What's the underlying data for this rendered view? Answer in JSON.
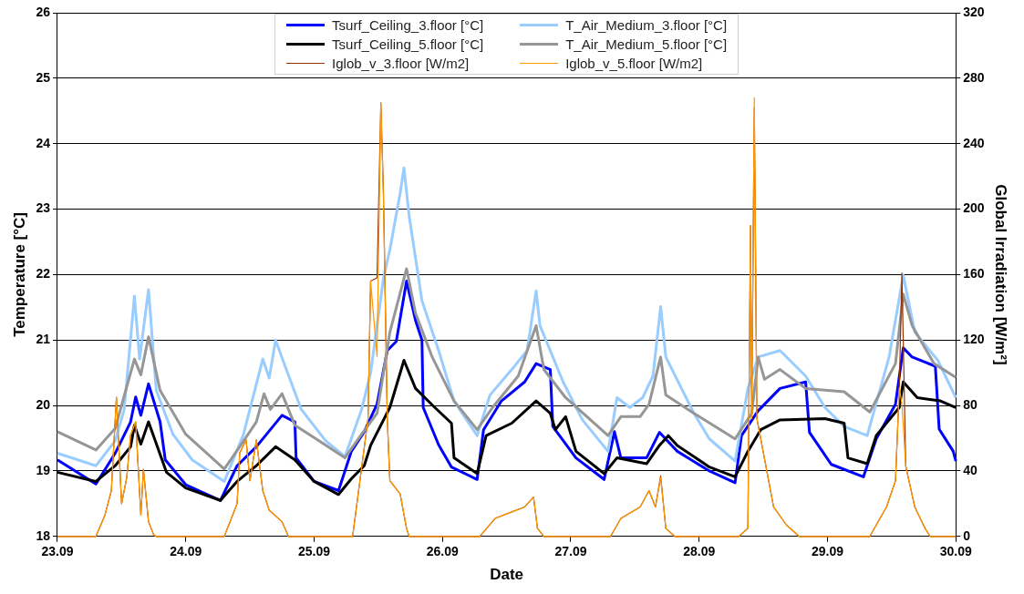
{
  "chart_data": {
    "type": "line",
    "xlabel": "Date",
    "ylabel": "Temperature [°C]",
    "y2label": "Global Irradiation [W/m²]",
    "xlim": [
      "--09-23",
      "--09-30"
    ],
    "xticks": [
      {
        "value": "--09-23",
        "label": "23.09"
      },
      {
        "value": "--09-24",
        "label": "24.09"
      },
      {
        "value": "--09-25",
        "label": "25.09"
      },
      {
        "value": "--09-26",
        "label": "26.09"
      },
      {
        "value": "--09-27",
        "label": "27.09"
      },
      {
        "value": "--09-28",
        "label": "28.09"
      },
      {
        "value": "--09-29",
        "label": "29.09"
      },
      {
        "value": "--09-30",
        "label": "30.09"
      }
    ],
    "ylim": [
      18,
      26
    ],
    "yticks": [
      18,
      19,
      20,
      21,
      22,
      23,
      24,
      25,
      26
    ],
    "y2lim": [
      0,
      320
    ],
    "y2ticks": [
      0,
      40,
      80,
      120,
      160,
      200,
      240,
      280,
      320
    ],
    "grid": "y",
    "legend": "top",
    "series": [
      {
        "name": "Tsurf_Ceiling_3.floor [°C]",
        "color": "#0000ff",
        "x": [
          "--09-23T00:00",
          "--09-23T07:12",
          "--09-23T10:48",
          "--09-23T13:41",
          "--09-23T14:38",
          "--09-23T15:36",
          "--09-23T17:02",
          "--09-23T19:12",
          "--09-23T20:10",
          "--09-24T00:00",
          "--09-24T06:29",
          "--09-24T09:36",
          "--09-24T13:12",
          "--09-24T18:00",
          "--09-24T20:24",
          "--09-24T20:38",
          "--09-25T00:00",
          "--09-25T04:34",
          "--09-25T06:58",
          "--09-25T09:22",
          "--09-25T11:46",
          "--09-25T13:41",
          "--09-25T15:22",
          "--09-25T17:17",
          "--09-25T18:58",
          "--09-25T20:10",
          "--09-25T20:24",
          "--09-25T23:17",
          "--09-26T01:41",
          "--09-26T06:29",
          "--09-26T07:41",
          "--09-26T11:02",
          "--09-26T15:22",
          "--09-26T17:31",
          "--09-26T20:10",
          "--09-26T20:38",
          "--09-27T00:58",
          "--09-27T06:14",
          "--09-27T08:10",
          "--09-27T09:22",
          "--09-27T14:10",
          "--09-27T16:34",
          "--09-27T19:55",
          "--09-28T01:55",
          "--09-28T06:43",
          "--09-28T07:55",
          "--09-28T11:02",
          "--09-28T15:07",
          "--09-28T19:55",
          "--09-28T20:38",
          "--09-29T00:43",
          "--09-29T06:43",
          "--09-29T09:07",
          "--09-29T12:43",
          "--09-29T14:10",
          "--09-29T15:50",
          "--09-29T20:10",
          "--09-29T20:53",
          "--09-29T23:31",
          "--09-30T00:00"
        ],
        "values": [
          19.17,
          18.8,
          19.27,
          19.75,
          20.13,
          19.85,
          20.33,
          19.75,
          19.17,
          18.79,
          18.55,
          19.08,
          19.37,
          19.85,
          19.75,
          19.2,
          18.84,
          18.7,
          19.3,
          19.6,
          20.02,
          20.84,
          20.98,
          21.9,
          21.3,
          21.0,
          19.97,
          19.4,
          19.06,
          18.87,
          19.63,
          20.07,
          20.36,
          20.64,
          20.55,
          19.68,
          19.2,
          18.87,
          19.6,
          19.2,
          19.2,
          19.59,
          19.3,
          19.0,
          18.82,
          19.54,
          19.92,
          20.26,
          20.36,
          19.59,
          19.1,
          18.91,
          19.49,
          20.02,
          20.88,
          20.74,
          20.6,
          19.64,
          19.3,
          19.15
        ]
      },
      {
        "name": "T_Air_Medium_3.floor [°C]",
        "color": "#99ccff",
        "x": [
          "--09-23T00:00",
          "--09-23T07:12",
          "--09-23T10:48",
          "--09-23T12:29",
          "--09-23T14:24",
          "--09-23T15:22",
          "--09-23T17:02",
          "--09-23T18:29",
          "--09-23T21:36",
          "--09-24T01:12",
          "--09-24T07:12",
          "--09-24T10:48",
          "--09-24T14:24",
          "--09-24T15:36",
          "--09-24T16:48",
          "--09-24T18:29",
          "--09-24T21:36",
          "--09-25T02:10",
          "--09-25T05:46",
          "--09-25T08:53",
          "--09-25T10:34",
          "--09-25T12:58",
          "--09-25T14:10",
          "--09-25T16:05",
          "--09-25T16:48",
          "--09-25T17:46",
          "--09-25T20:10",
          "--09-25T23:17",
          "--09-26T02:10",
          "--09-26T06:29",
          "--09-26T08:53",
          "--09-26T12:58",
          "--09-26T15:50",
          "--09-26T17:31",
          "--09-26T18:14",
          "--09-26T22:34",
          "--09-27T02:10",
          "--09-27T06:58",
          "--09-27T08:38",
          "--09-27T11:02",
          "--09-27T13:26",
          "--09-27T15:22",
          "--09-27T16:48",
          "--09-27T17:46",
          "--09-27T23:02",
          "--09-28T01:55",
          "--09-28T06:43",
          "--09-28T09:07",
          "--09-28T11:02",
          "--09-28T15:07",
          "--09-28T19:55",
          "--09-28T23:31",
          "--09-29T03:07",
          "--09-29T07:26",
          "--09-29T11:31",
          "--09-29T14:10",
          "--09-29T16:19",
          "--09-29T20:38",
          "--09-30T00:00"
        ],
        "values": [
          19.27,
          19.08,
          19.46,
          19.94,
          21.67,
          20.71,
          21.77,
          20.23,
          19.56,
          19.17,
          18.84,
          19.56,
          20.71,
          20.42,
          21.0,
          20.62,
          19.94,
          19.46,
          19.22,
          19.94,
          20.5,
          21.94,
          22.38,
          23.24,
          23.63,
          22.9,
          21.6,
          20.84,
          20.07,
          19.54,
          20.16,
          20.55,
          20.84,
          21.75,
          21.22,
          20.36,
          19.78,
          19.3,
          20.12,
          19.97,
          20.12,
          20.45,
          21.51,
          20.74,
          19.88,
          19.49,
          19.15,
          20.26,
          20.74,
          20.84,
          20.45,
          19.97,
          19.68,
          19.54,
          20.74,
          21.99,
          21.12,
          20.69,
          20.12
        ]
      },
      {
        "name": "Tsurf_Ceiling_5.floor [°C]",
        "color": "#000000",
        "x": [
          "--09-23T00:00",
          "--09-23T07:12",
          "--09-23T10:48",
          "--09-23T13:41",
          "--09-23T14:24",
          "--09-23T15:36",
          "--09-23T17:02",
          "--09-23T20:24",
          "--09-24T00:00",
          "--09-24T06:29",
          "--09-24T09:36",
          "--09-24T13:12",
          "--09-24T16:48",
          "--09-24T20:24",
          "--09-25T00:00",
          "--09-25T04:34",
          "--09-25T06:58",
          "--09-25T09:22",
          "--09-25T10:34",
          "--09-25T14:10",
          "--09-25T16:48",
          "--09-25T18:58",
          "--09-25T22:34",
          "--09-26T01:41",
          "--09-26T02:10",
          "--09-26T06:29",
          "--09-26T08:10",
          "--09-26T12:58",
          "--09-26T17:31",
          "--09-26T20:10",
          "--09-26T21:07",
          "--09-26T23:02",
          "--09-27T00:58",
          "--09-27T06:14",
          "--09-27T08:38",
          "--09-27T14:10",
          "--09-27T16:34",
          "--09-27T18:14",
          "--09-27T19:55",
          "--09-28T01:55",
          "--09-28T06:43",
          "--09-28T09:07",
          "--09-28T11:31",
          "--09-28T15:07",
          "--09-28T23:31",
          "--09-29T03:07",
          "--09-29T03:50",
          "--09-29T07:26",
          "--09-29T09:07",
          "--09-29T13:26",
          "--09-29T14:10",
          "--09-29T16:48",
          "--09-29T21:07",
          "--09-30T00:00"
        ],
        "values": [
          18.98,
          18.84,
          19.08,
          19.37,
          19.7,
          19.41,
          19.75,
          18.98,
          18.74,
          18.55,
          18.84,
          19.08,
          19.37,
          19.17,
          18.84,
          18.64,
          18.88,
          19.08,
          19.39,
          19.97,
          20.69,
          20.26,
          19.97,
          19.73,
          19.2,
          18.96,
          19.54,
          19.73,
          20.07,
          19.88,
          19.63,
          19.83,
          19.3,
          18.96,
          19.2,
          19.11,
          19.39,
          19.54,
          19.39,
          19.06,
          18.91,
          19.3,
          19.63,
          19.78,
          19.8,
          19.73,
          19.2,
          19.11,
          19.54,
          19.97,
          20.36,
          20.12,
          20.07,
          19.97
        ]
      },
      {
        "name": "T_Air_Medium_5.floor [°C]",
        "color": "#969696",
        "x": [
          "--09-23T00:00",
          "--09-23T07:12",
          "--09-23T10:48",
          "--09-23T14:24",
          "--09-23T15:36",
          "--09-23T17:02",
          "--09-23T19:12",
          "--09-24T00:00",
          "--09-24T07:12",
          "--09-24T10:05",
          "--09-24T13:12",
          "--09-24T14:38",
          "--09-24T15:50",
          "--09-24T18:00",
          "--09-24T20:24",
          "--09-25T00:58",
          "--09-25T05:46",
          "--09-25T08:53",
          "--09-25T11:46",
          "--09-25T14:10",
          "--09-25T17:17",
          "--09-25T18:58",
          "--09-25T22:05",
          "--09-26T02:10",
          "--09-26T06:29",
          "--09-26T09:22",
          "--09-26T14:10",
          "--09-26T17:31",
          "--09-26T18:58",
          "--09-26T23:02",
          "--09-27T06:58",
          "--09-27T09:22",
          "--09-27T12:58",
          "--09-27T14:38",
          "--09-27T16:48",
          "--09-27T17:46",
          "--09-27T23:02",
          "--09-28T06:43",
          "--09-28T09:50",
          "--09-28T11:02",
          "--09-28T12:14",
          "--09-28T15:07",
          "--09-28T19:55",
          "--09-29T03:07",
          "--09-29T07:55",
          "--09-29T12:43",
          "--09-29T14:10",
          "--09-29T15:50",
          "--09-29T19:55",
          "--09-30T00:00"
        ],
        "values": [
          19.6,
          19.32,
          19.65,
          20.71,
          20.47,
          21.05,
          20.23,
          19.56,
          19.03,
          19.37,
          19.75,
          20.18,
          19.94,
          20.18,
          19.7,
          19.46,
          19.2,
          19.56,
          19.88,
          21.12,
          22.09,
          21.41,
          20.74,
          20.07,
          19.63,
          19.97,
          20.45,
          21.22,
          20.55,
          20.12,
          19.54,
          19.83,
          19.83,
          20.02,
          20.74,
          20.16,
          19.88,
          19.49,
          19.88,
          20.74,
          20.4,
          20.55,
          20.26,
          20.21,
          19.9,
          20.64,
          21.7,
          21.22,
          20.64,
          20.43
        ]
      },
      {
        "name": "Iglob_v_3.floor [W/m2]",
        "color": "#993300",
        "axis": "y2",
        "x": [
          "--09-23T00:00",
          "--09-23T07:12",
          "--09-23T08:53",
          "--09-23T10:05",
          "--09-23T11:02",
          "--09-23T12:00",
          "--09-23T12:58",
          "--09-23T13:41",
          "--09-23T14:38",
          "--09-23T15:36",
          "--09-23T16:05",
          "--09-23T17:02",
          "--09-23T18:00",
          "--09-23T18:29",
          "--09-24T07:12",
          "--09-24T09:36",
          "--09-24T10:05",
          "--09-24T11:17",
          "--09-24T12:00",
          "--09-24T13:12",
          "--09-24T14:24",
          "--09-24T15:36",
          "--09-24T18:00",
          "--09-24T19:12",
          "--09-25T07:12",
          "--09-25T08:10",
          "--09-25T10:05",
          "--09-25T10:34",
          "--09-25T11:46",
          "--09-25T12:29",
          "--09-25T12:58",
          "--09-25T13:41",
          "--09-25T14:10",
          "--09-25T16:05",
          "--09-25T17:17",
          "--09-25T17:46",
          "--09-26T06:58",
          "--09-26T09:50",
          "--09-26T12:58",
          "--09-26T15:22",
          "--09-26T17:02",
          "--09-26T17:46",
          "--09-26T18:58",
          "--09-27T07:26",
          "--09-27T09:22",
          "--09-27T12:58",
          "--09-27T14:38",
          "--09-27T15:50",
          "--09-27T16:48",
          "--09-27T17:46",
          "--09-27T19:26",
          "--09-28T07:26",
          "--09-28T09:07",
          "--09-28T09:36",
          "--09-28T09:50",
          "--09-28T10:19",
          "--09-28T10:48",
          "--09-28T12:29",
          "--09-28T13:55",
          "--09-28T16:19",
          "--09-28T18:43",
          "--09-29T07:55",
          "--09-29T11:02",
          "--09-29T12:43",
          "--09-29T13:26",
          "--09-29T13:55",
          "--09-29T14:38",
          "--09-29T16:19",
          "--09-29T18:14",
          "--09-29T19:12",
          "--09-30T00:00"
        ],
        "values": [
          0,
          0,
          13,
          28,
          85,
          20,
          36,
          62,
          70,
          13,
          41,
          9,
          1,
          0,
          0,
          20,
          51,
          59,
          34,
          59,
          28,
          16,
          9,
          0,
          0,
          24,
          72,
          156,
          158,
          265,
          210,
          72,
          34,
          26,
          5,
          0,
          0,
          11,
          15,
          18,
          24,
          5,
          0,
          0,
          11,
          18,
          28,
          18,
          37,
          5,
          0,
          0,
          5,
          190,
          72,
          262,
          72,
          43,
          18,
          7,
          0,
          0,
          18,
          34,
          91,
          161,
          43,
          18,
          5,
          0,
          0
        ]
      },
      {
        "name": "Iglob_v_5.floor [W/m2]",
        "color": "#ff9900",
        "axis": "y2",
        "x": [
          "--09-23T00:00",
          "--09-23T07:12",
          "--09-23T08:53",
          "--09-23T10:05",
          "--09-23T11:02",
          "--09-23T12:00",
          "--09-23T12:58",
          "--09-23T13:41",
          "--09-23T14:38",
          "--09-23T15:36",
          "--09-23T16:05",
          "--09-23T17:02",
          "--09-23T18:00",
          "--09-23T18:29",
          "--09-24T07:12",
          "--09-24T09:36",
          "--09-24T10:05",
          "--09-24T11:17",
          "--09-24T12:00",
          "--09-24T13:12",
          "--09-24T14:24",
          "--09-24T15:36",
          "--09-24T18:00",
          "--09-24T19:12",
          "--09-25T07:12",
          "--09-25T08:10",
          "--09-25T10:05",
          "--09-25T10:34",
          "--09-25T11:46",
          "--09-25T12:29",
          "--09-25T12:58",
          "--09-25T13:41",
          "--09-25T14:10",
          "--09-25T16:05",
          "--09-25T17:17",
          "--09-25T17:46",
          "--09-26T06:58",
          "--09-26T09:50",
          "--09-26T12:58",
          "--09-26T15:22",
          "--09-26T17:02",
          "--09-26T17:46",
          "--09-26T18:58",
          "--09-27T07:26",
          "--09-27T09:22",
          "--09-27T12:58",
          "--09-27T14:38",
          "--09-27T15:50",
          "--09-27T16:48",
          "--09-27T17:46",
          "--09-27T19:26",
          "--09-28T07:26",
          "--09-28T09:07",
          "--09-28T09:36",
          "--09-28T09:50",
          "--09-28T10:19",
          "--09-28T10:48",
          "--09-28T12:29",
          "--09-28T13:55",
          "--09-28T16:19",
          "--09-28T18:43",
          "--09-29T07:55",
          "--09-29T11:02",
          "--09-29T12:43",
          "--09-29T13:26",
          "--09-29T13:55",
          "--09-29T14:38",
          "--09-29T16:19",
          "--09-29T18:14",
          "--09-29T19:12",
          "--09-30T00:00"
        ],
        "values": [
          0,
          0,
          13,
          28,
          85,
          20,
          36,
          62,
          70,
          13,
          41,
          9,
          1,
          0,
          0,
          20,
          51,
          59,
          34,
          59,
          28,
          16,
          9,
          0,
          0,
          24,
          72,
          156,
          110,
          265,
          206,
          72,
          34,
          26,
          5,
          0,
          0,
          11,
          15,
          18,
          24,
          5,
          0,
          0,
          11,
          18,
          28,
          18,
          36,
          5,
          0,
          0,
          5,
          190,
          72,
          268,
          72,
          43,
          18,
          7,
          0,
          0,
          18,
          34,
          91,
          81,
          43,
          18,
          5,
          0,
          0
        ]
      }
    ]
  }
}
